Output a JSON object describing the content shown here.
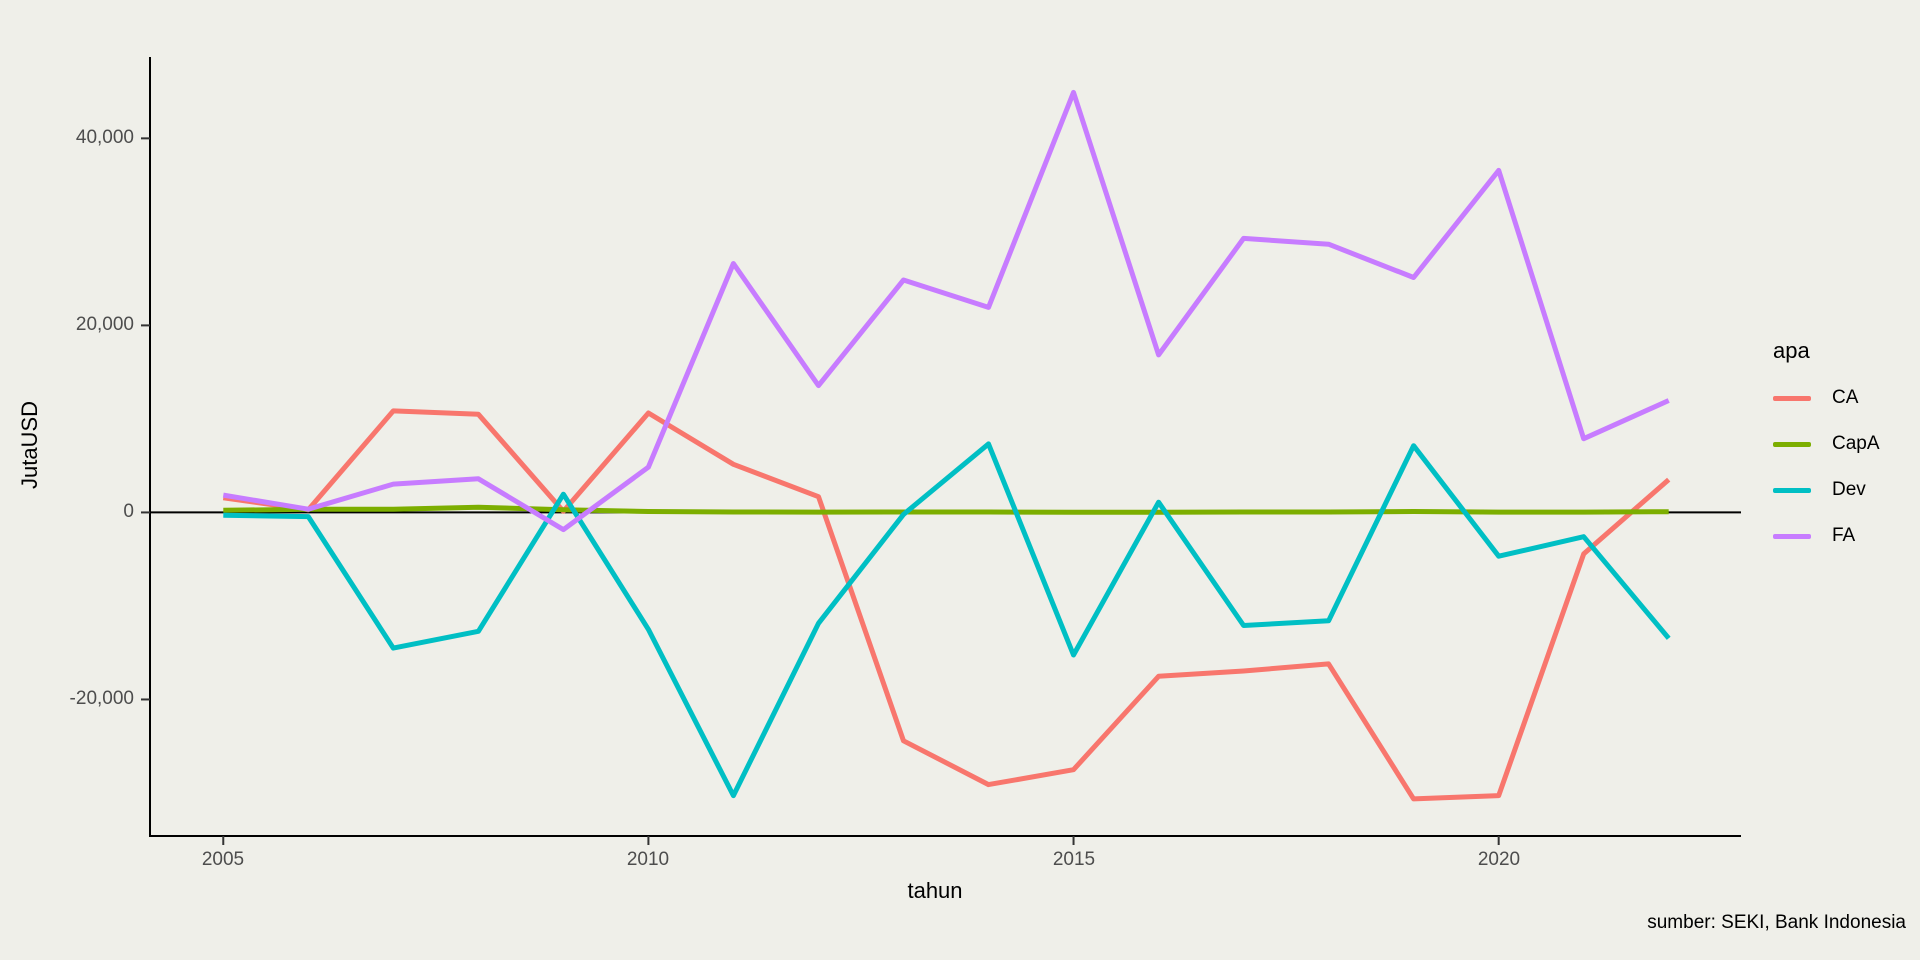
{
  "figure": {
    "background": "#EFEFE9",
    "caption": "sumber: SEKI, Bank Indonesia"
  },
  "axes": {
    "x_title": "tahun",
    "y_title": "JutaUSD",
    "x_tick_labels": [
      "2005",
      "2010",
      "2015",
      "2020"
    ],
    "y_tick_labels": [
      "-20,000",
      "0",
      "20,000",
      "40,000"
    ],
    "axis_color": "#000000",
    "tick_mark_color": "#333333",
    "tick_label_color": "#4d4d4d"
  },
  "legend": {
    "title": "apa",
    "position": "right"
  },
  "chart_data": {
    "type": "line",
    "title": "",
    "xlabel": "tahun",
    "ylabel": "JutaUSD",
    "caption": "sumber: SEKI, Bank Indonesia",
    "legend_title": "apa",
    "legend_position": "right",
    "grid": false,
    "hline_y": 0,
    "x": [
      2005,
      2006,
      2007,
      2008,
      2009,
      2010,
      2011,
      2012,
      2013,
      2014,
      2015,
      2016,
      2017,
      2018,
      2019,
      2020,
      2021,
      2022
    ],
    "x_ticks": [
      2005,
      2010,
      2015,
      2020
    ],
    "y_ticks": [
      -20000,
      0,
      20000,
      40000
    ],
    "xlim": [
      2004.15,
      2022.85
    ],
    "ylim": [
      -34600,
      48700
    ],
    "line_width": 5,
    "series": [
      {
        "name": "CA",
        "color": "#F8766D",
        "values": [
          1563,
          278,
          10859,
          10493,
          126,
          10628,
          5144,
          1685,
          -24418,
          -29109,
          -27510,
          -17519,
          -16952,
          -16196,
          -30633,
          -30279,
          -4433,
          3511
        ]
      },
      {
        "name": "CapA",
        "color": "#7CAE00",
        "values": [
          228,
          333,
          350,
          546,
          294,
          96,
          50,
          33,
          51,
          45,
          27,
          17,
          41,
          46,
          97,
          39,
          37,
          80
        ]
      },
      {
        "name": "Dev",
        "color": "#00BFC4",
        "values": [
          -309,
          -444,
          -14510,
          -12715,
          1945,
          -12506,
          -30285,
          -11857,
          -215,
          7325,
          -15249,
          1098,
          -12089,
          -11586,
          7131,
          -4684,
          -2600,
          -13460
        ]
      },
      {
        "name": "FA",
        "color": "#C77CFF",
        "values": [
          1852,
          345,
          3025,
          3591,
          -1832,
          4852,
          26620,
          13567,
          24858,
          21926,
          44916,
          16843,
          29306,
          28686,
          25121,
          36574,
          7885,
          11972
        ]
      }
    ]
  }
}
